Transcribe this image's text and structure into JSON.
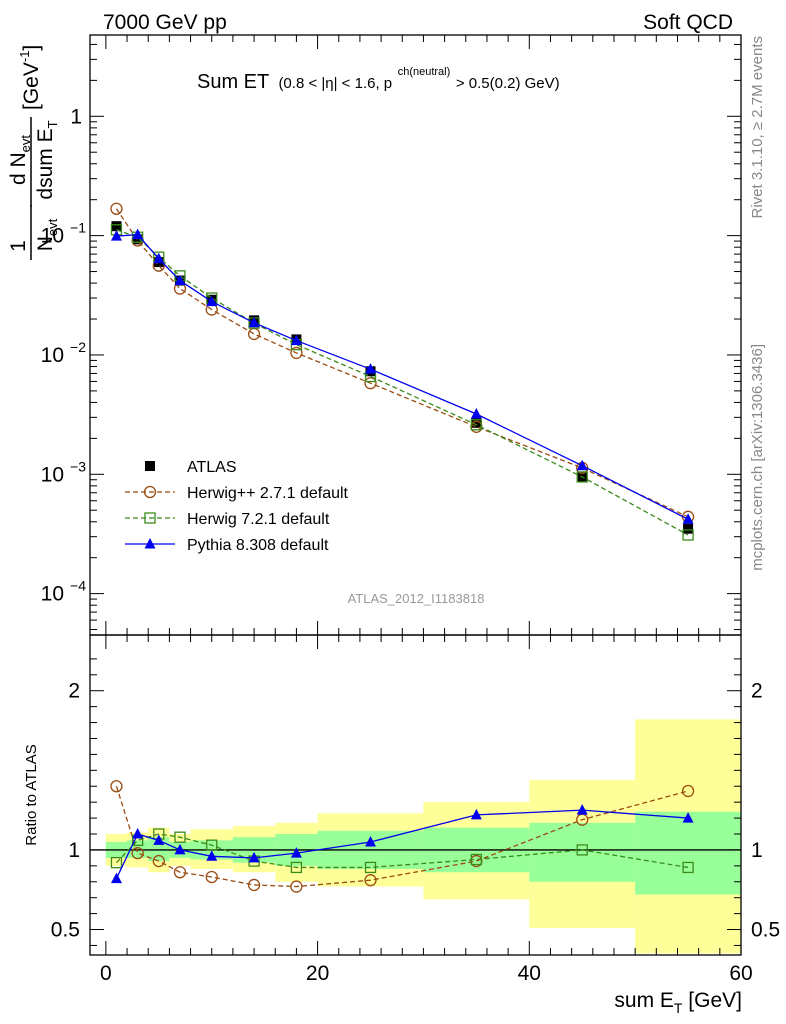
{
  "header": {
    "left": "7000 GeV pp",
    "right": "Soft QCD"
  },
  "side_labels": {
    "top": "Rivet 3.1.10, ≥ 2.7M events",
    "bottom": "mcplots.cern.ch [arXiv:1306.3436]"
  },
  "plot_title": {
    "main": "Sum ET",
    "cond_a": "(0.8 < |η| < 1.6, p",
    "cond_sup": "ch(neutral)",
    "cond_b": " > 0.5(0.2) GeV)"
  },
  "analysis_id": "ATLAS_2012_I1183818",
  "ylabel_ratio": "Ratio to ATLAS",
  "ylabel_top": {
    "frac1_num": "1",
    "frac1_den": "N",
    "frac1_den_sub": "evt",
    "frac2_num": "d N",
    "frac2_num_sub": "evt",
    "frac2_den": "dsum E",
    "frac2_den_sub": "T",
    "unit": "[GeV",
    "unit_sup": "-1",
    "unit_close": "]"
  },
  "xlabel": {
    "text": "sum E",
    "sub": "T",
    "unit": " [GeV]"
  },
  "chart_data": [
    {
      "type": "scatter",
      "log_y": true,
      "xlim": [
        -1.5,
        60
      ],
      "ylim": [
        4.5e-05,
        4.8
      ],
      "x_ticks": [
        0,
        20,
        40,
        60
      ],
      "y_ticks": [
        {
          "value": 0.0001,
          "base": "10",
          "exp": "-4"
        },
        {
          "value": 0.001,
          "base": "10",
          "exp": "-3"
        },
        {
          "value": 0.01,
          "base": "10",
          "exp": "-2"
        },
        {
          "value": 0.1,
          "base": "10",
          "exp": "-1"
        },
        {
          "value": 1,
          "base": "1",
          "exp": ""
        }
      ],
      "bins": [
        [
          0,
          2
        ],
        [
          2,
          4
        ],
        [
          4,
          6
        ],
        [
          6,
          8
        ],
        [
          8,
          12
        ],
        [
          12,
          16
        ],
        [
          16,
          20
        ],
        [
          20,
          30
        ],
        [
          30,
          40
        ],
        [
          40,
          50
        ],
        [
          50,
          60
        ]
      ],
      "x": [
        1,
        3,
        5,
        7,
        10,
        14,
        18,
        25,
        35,
        45,
        55
      ],
      "series": [
        {
          "name": "ATLAS",
          "marker": "square-filled",
          "color": "#000000",
          "dash": "none",
          "values": [
            0.12,
            0.093,
            0.06,
            0.042,
            0.029,
            0.0195,
            0.0135,
            0.0073,
            0.0027,
            0.00095,
            0.00035
          ]
        },
        {
          "name": "Herwig++ 2.7.1 default",
          "marker": "circle-open",
          "color": "#9a4c12",
          "dash": "dashed",
          "values": [
            0.168,
            0.091,
            0.056,
            0.036,
            0.024,
            0.015,
            0.0104,
            0.0058,
            0.0025,
            0.00113,
            0.00044
          ]
        },
        {
          "name": "Herwig 7.2.1 default",
          "marker": "square-open",
          "color": "#3a8a1a",
          "dash": "dashed",
          "values": [
            0.112,
            0.097,
            0.066,
            0.046,
            0.03,
            0.0185,
            0.0122,
            0.0066,
            0.0026,
            0.00095,
            0.00031
          ]
        },
        {
          "name": "Pythia 8.308 default",
          "marker": "triangle-filled",
          "color": "#0000ee",
          "dash": "solid",
          "values": [
            0.099,
            0.102,
            0.064,
            0.042,
            0.028,
            0.0186,
            0.0132,
            0.0076,
            0.0032,
            0.00118,
            0.00042
          ]
        }
      ],
      "legend_position": "lower-left"
    },
    {
      "type": "scatter",
      "xlim": [
        -1.5,
        60
      ],
      "ylim": [
        0.34,
        2.35
      ],
      "x_ticks": [
        0,
        20,
        40,
        60
      ],
      "y_ticks": [
        0.5,
        1,
        2
      ],
      "reference_line": 1,
      "x": [
        1,
        3,
        5,
        7,
        10,
        14,
        18,
        25,
        35,
        45,
        55
      ],
      "band_1sigma": [
        [
          0.95,
          1.05
        ],
        [
          0.95,
          1.06
        ],
        [
          0.93,
          1.08
        ],
        [
          0.95,
          1.05
        ],
        [
          0.94,
          1.06
        ],
        [
          0.92,
          1.08
        ],
        [
          0.9,
          1.1
        ],
        [
          0.88,
          1.12
        ],
        [
          0.86,
          1.14
        ],
        [
          0.8,
          1.17
        ],
        [
          0.72,
          1.24
        ]
      ],
      "band_2sigma": [
        [
          0.9,
          1.1
        ],
        [
          0.89,
          1.11
        ],
        [
          0.86,
          1.14
        ],
        [
          0.9,
          1.1
        ],
        [
          0.88,
          1.13
        ],
        [
          0.86,
          1.15
        ],
        [
          0.8,
          1.17
        ],
        [
          0.77,
          1.23
        ],
        [
          0.69,
          1.3
        ],
        [
          0.51,
          1.44
        ],
        [
          0.35,
          1.82
        ]
      ],
      "series": [
        {
          "name": "Herwig++ 2.7.1 default",
          "values": [
            1.4,
            0.98,
            0.93,
            0.86,
            0.83,
            0.78,
            0.77,
            0.81,
            0.93,
            1.19,
            1.37
          ]
        },
        {
          "name": "Herwig 7.2.1 default",
          "values": [
            0.92,
            1.06,
            1.1,
            1.08,
            1.03,
            0.93,
            0.89,
            0.89,
            0.94,
            1.0,
            0.89
          ]
        },
        {
          "name": "Pythia 8.308 default",
          "values": [
            0.82,
            1.1,
            1.06,
            1.0,
            0.96,
            0.95,
            0.98,
            1.05,
            1.22,
            1.25,
            1.2
          ]
        }
      ]
    }
  ]
}
